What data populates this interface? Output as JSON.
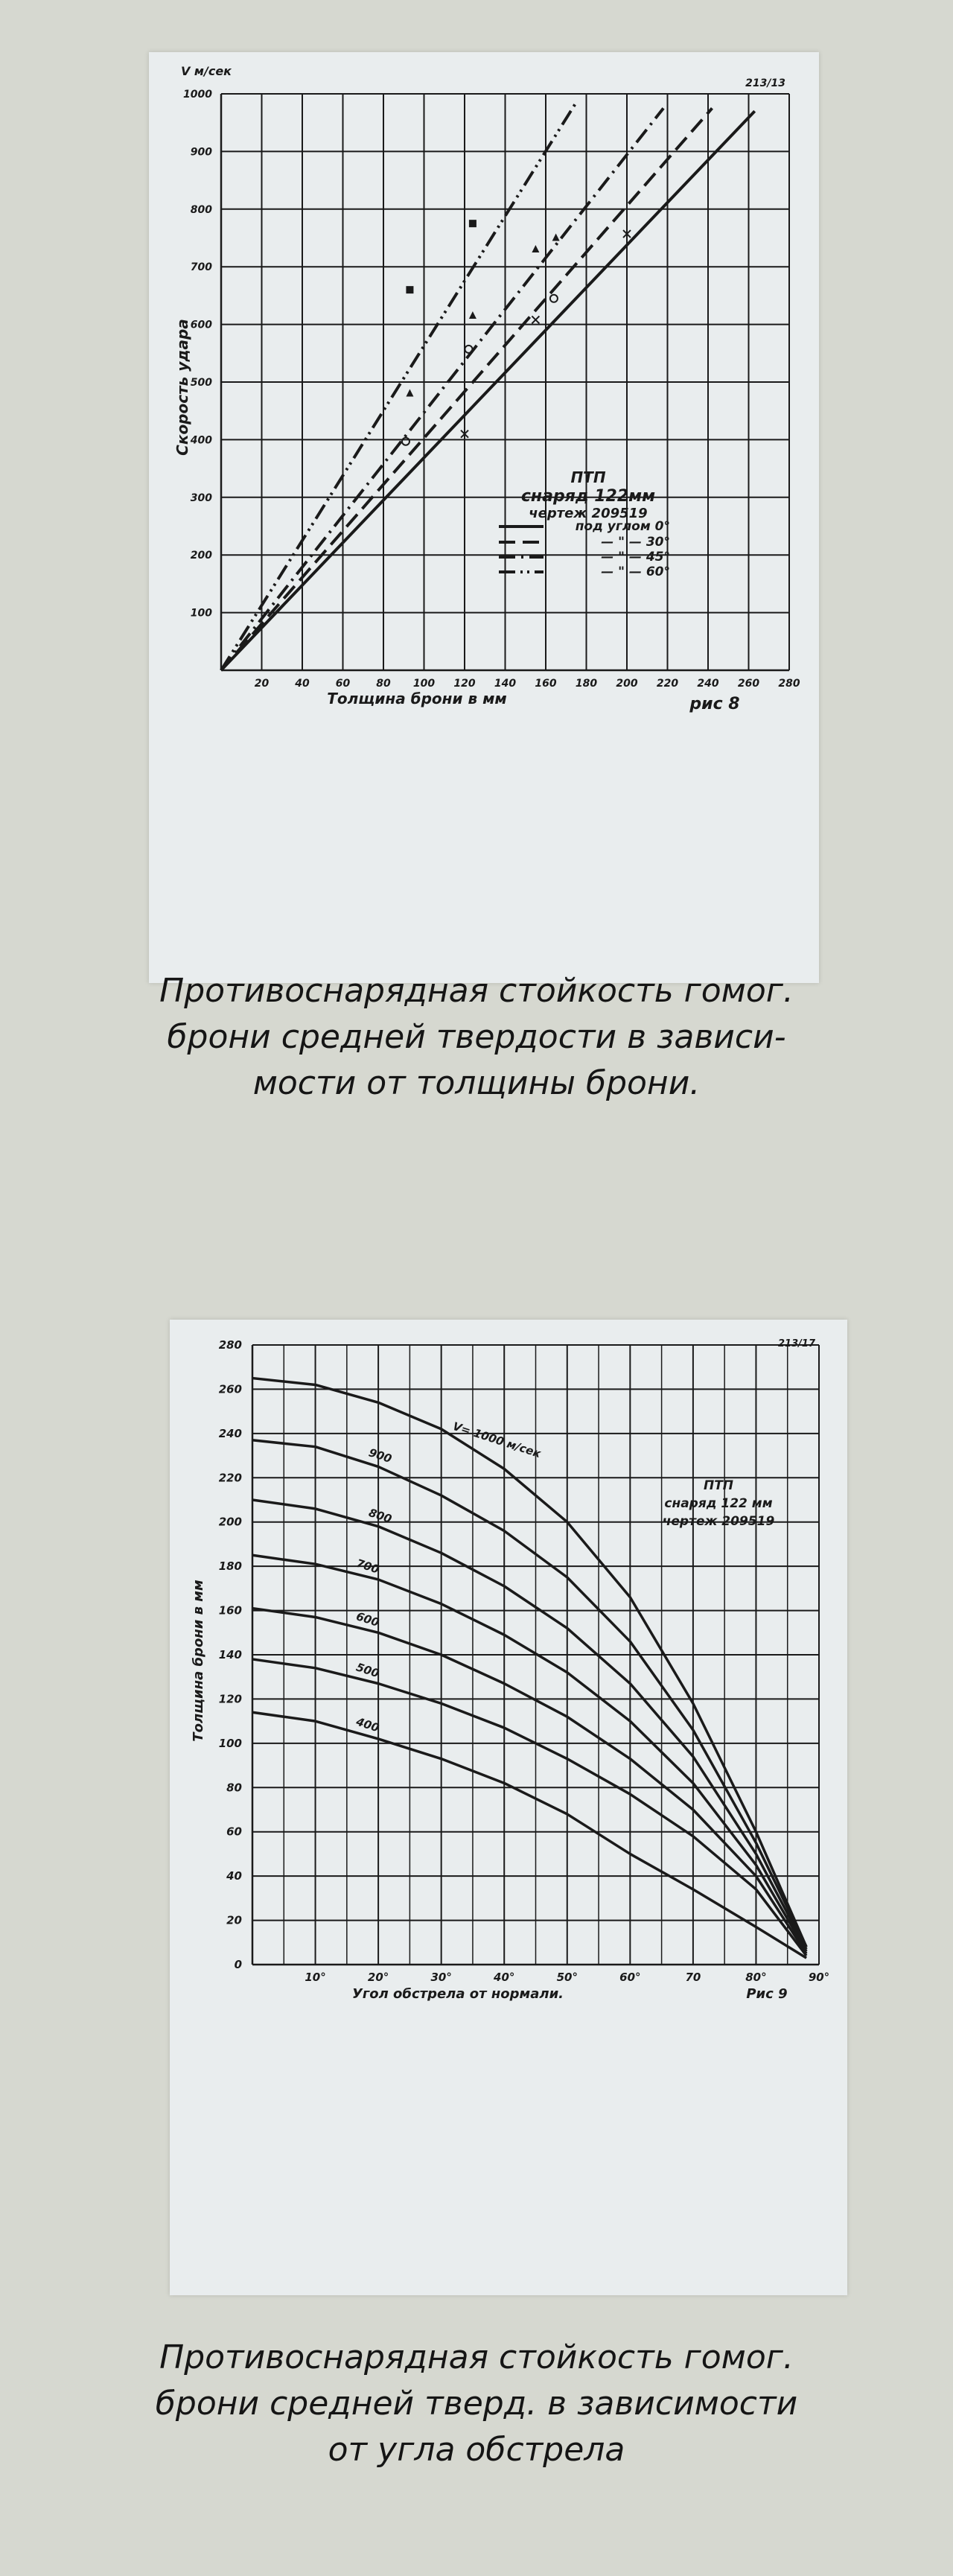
{
  "chart_data": [
    {
      "type": "line",
      "corner_label": "213/13",
      "ylabel_unit": "V м/сек",
      "ylabel": "Скорость удара",
      "xlabel": "Толщина брони в мм",
      "figure_label": "рис 8",
      "xlim": [
        0,
        280
      ],
      "ylim": [
        0,
        1000
      ],
      "x_ticks": [
        20,
        40,
        60,
        80,
        100,
        120,
        140,
        160,
        180,
        200,
        220,
        240,
        260,
        280
      ],
      "y_ticks": [
        100,
        200,
        300,
        400,
        500,
        600,
        700,
        800,
        900,
        1000
      ],
      "grid": true,
      "legend": {
        "position": "center-right",
        "title_lines": [
          "ПТП",
          "снаряд 122мм",
          "чертеж 209519"
        ],
        "entries": [
          {
            "text": "под углом 0°",
            "style": "solid"
          },
          {
            "text": "— \" — 30°",
            "style": "dashed"
          },
          {
            "text": "— \" — 45°",
            "style": "dash-dot"
          },
          {
            "text": "— \" — 60°",
            "style": "dash-dot-dot"
          }
        ]
      },
      "series": [
        {
          "style": "solid",
          "x": [
            0,
            263
          ],
          "y": [
            0,
            970
          ]
        },
        {
          "style": "dashed",
          "x": [
            0,
            242
          ],
          "y": [
            0,
            975
          ]
        },
        {
          "style": "dash-dot",
          "x": [
            0,
            218
          ],
          "y": [
            0,
            975
          ]
        },
        {
          "style": "dash-dot-dot",
          "x": [
            0,
            175
          ],
          "y": [
            0,
            985
          ]
        }
      ],
      "markers": [
        {
          "shape": "square",
          "x": 93,
          "y": 660
        },
        {
          "shape": "square",
          "x": 124,
          "y": 775
        },
        {
          "shape": "triangle",
          "x": 93,
          "y": 480
        },
        {
          "shape": "triangle",
          "x": 124,
          "y": 615
        },
        {
          "shape": "triangle",
          "x": 155,
          "y": 730
        },
        {
          "shape": "triangle",
          "x": 165,
          "y": 750
        },
        {
          "shape": "circle",
          "x": 91,
          "y": 397
        },
        {
          "shape": "circle",
          "x": 122,
          "y": 557
        },
        {
          "shape": "circle",
          "x": 164,
          "y": 645
        },
        {
          "shape": "cross",
          "x": 155,
          "y": 608
        },
        {
          "shape": "cross",
          "x": 120,
          "y": 410
        },
        {
          "shape": "cross",
          "x": 200,
          "y": 757
        }
      ]
    },
    {
      "type": "line",
      "corner_label": "213/17",
      "ylabel": "Толщина брони в мм",
      "xlabel": "Угол обстрела от нормали.",
      "figure_label": "Рис 9",
      "xlim": [
        0,
        90
      ],
      "ylim": [
        0,
        280
      ],
      "x_ticks": [
        "10°",
        "20°",
        "30°",
        "40°",
        "50°",
        "60°",
        "70",
        "80°",
        "90°"
      ],
      "y_ticks": [
        0,
        20,
        40,
        60,
        80,
        100,
        120,
        140,
        160,
        180,
        200,
        220,
        240,
        260,
        280
      ],
      "grid": true,
      "annotation_lines": [
        "ПТП",
        "снаряд 122 мм",
        "чертеж 209519"
      ],
      "x": [
        0,
        10,
        20,
        30,
        40,
        50,
        60,
        70,
        80,
        88
      ],
      "series": [
        {
          "name": "V= 1000 м/сек",
          "values": [
            265,
            262,
            254,
            242,
            224,
            200,
            166,
            118,
            60,
            8
          ]
        },
        {
          "name": "900",
          "values": [
            237,
            234,
            225,
            212,
            196,
            175,
            146,
            106,
            55,
            8
          ]
        },
        {
          "name": "800",
          "values": [
            210,
            206,
            198,
            186,
            171,
            152,
            127,
            94,
            50,
            7
          ]
        },
        {
          "name": "700",
          "values": [
            185,
            181,
            174,
            163,
            149,
            132,
            110,
            82,
            45,
            6
          ]
        },
        {
          "name": "600",
          "values": [
            161,
            157,
            150,
            140,
            127,
            112,
            93,
            70,
            40,
            5
          ]
        },
        {
          "name": "500",
          "values": [
            138,
            134,
            127,
            118,
            107,
            93,
            77,
            58,
            34,
            4
          ]
        },
        {
          "name": "400",
          "values": [
            114,
            110,
            102,
            93,
            82,
            68,
            50,
            34,
            17,
            3
          ]
        }
      ]
    }
  ],
  "captions": [
    [
      "Противоснарядная стойкость гомог.",
      "брони средней твердости в зависи-",
      "мости от толщины брони."
    ],
    [
      "Противоснарядная стойкость гомог.",
      "брони средней тверд. в зависимости",
      "от угла обстрела"
    ]
  ],
  "colors": {
    "background": "#d6d8d0",
    "paper": "#e9edee",
    "ink": "#1a1a1a"
  }
}
